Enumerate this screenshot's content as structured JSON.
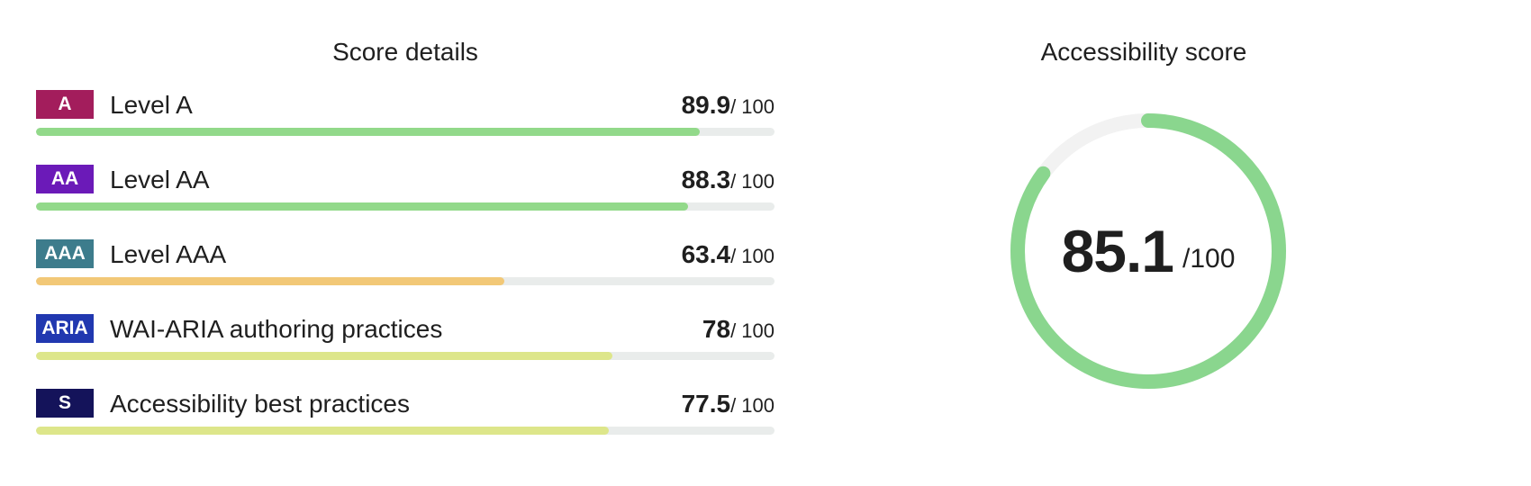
{
  "details": {
    "title": "Score details",
    "rows": [
      {
        "badge": "A",
        "badge_color": "#a31d5c",
        "label": "Level A",
        "score": "89.9",
        "max": "/ 100",
        "fraction": 0.899,
        "bar_color": "#92d98a"
      },
      {
        "badge": "AA",
        "badge_color": "#6b1ab8",
        "label": "Level AA",
        "score": "88.3",
        "max": "/ 100",
        "fraction": 0.883,
        "bar_color": "#92d98a"
      },
      {
        "badge": "AAA",
        "badge_color": "#3d7c8c",
        "label": "Level AAA",
        "score": "63.4",
        "max": "/ 100",
        "fraction": 0.634,
        "bar_color": "#f2c877"
      },
      {
        "badge": "ARIA",
        "badge_color": "#2138b0",
        "label": "WAI-ARIA authoring practices",
        "score": "78",
        "max": "/ 100",
        "fraction": 0.78,
        "bar_color": "#dde68a"
      },
      {
        "badge": "S",
        "badge_color": "#14135a",
        "label": "Accessibility best practices",
        "score": "77.5",
        "max": "/ 100",
        "fraction": 0.775,
        "bar_color": "#dde68a"
      }
    ]
  },
  "overall": {
    "title": "Accessibility score",
    "score": "85.1",
    "max": "/100",
    "fraction": 0.851,
    "ring_color": "#8ad68e",
    "track_color": "#f2f2f2"
  }
}
